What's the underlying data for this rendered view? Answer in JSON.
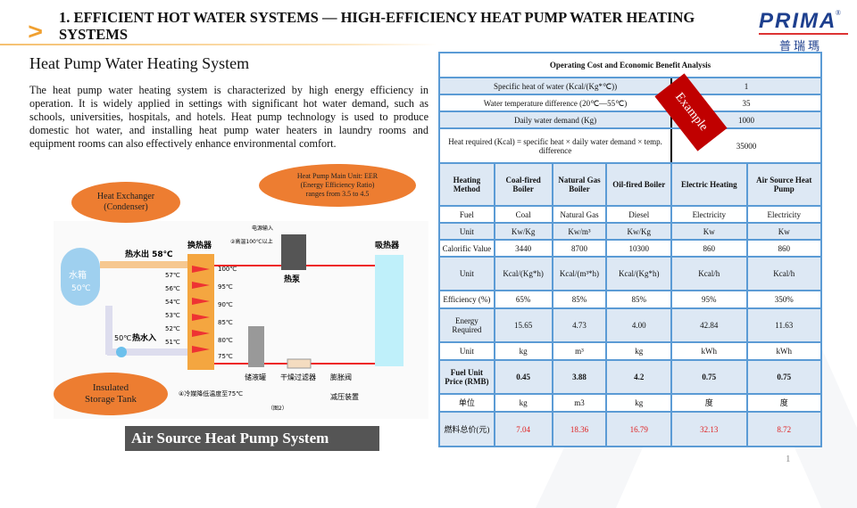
{
  "header": {
    "title": "1. EFFICIENT HOT WATER SYSTEMS — HIGH-EFFICIENCY HEAT PUMP WATER HEATING SYSTEMS",
    "logo_text": "PRIMA",
    "logo_cn": "普瑞瑪"
  },
  "left": {
    "subtitle": "Heat Pump Water Heating System",
    "paragraph": "The heat pump water heating system is characterized by high energy efficiency in operation. It is widely applied in settings with significant hot water demand, such as schools, universities, hospitals, and hotels. Heat pump technology is used to produce domestic hot water, and installing heat pump water heaters in laundry rooms and equipment rooms can also effectively enhance environmental comfort.",
    "callouts": {
      "exchanger": "Heat Exchanger (Condenser)",
      "main_unit": "Heat Pump Main Unit: EER (Energy Efficiency Ratio) ranges from 3.5 to 4.5",
      "tank": "Insulated Storage Tank"
    },
    "diagram": {
      "tank": "水箱",
      "tank_temp": "50℃",
      "hot_out": "热水出 58℃",
      "hot_in": "热水入",
      "in_temp": "50℃",
      "exchanger": "换热器",
      "absorber": "吸热器",
      "pump": "热泵",
      "power": "电源输入",
      "high_temp": "②高温100℃以上",
      "reservoir": "储液罐",
      "filter": "干燥过滤器",
      "valve": "膨胀阀",
      "reducer": "减压装置",
      "fig": "（图2）",
      "lower": "④冷媒降低温度至75℃",
      "water_temps": [
        "57℃",
        "56℃",
        "54℃",
        "53℃",
        "52℃",
        "51℃"
      ],
      "ref_temps": [
        "100℃",
        "95℃",
        "90℃",
        "85℃",
        "80℃",
        "75℃"
      ]
    },
    "caption": "Air Source Heat Pump System"
  },
  "table": {
    "title": "Operating Cost and Economic Benefit Analysis",
    "params": [
      {
        "label": "Specific heat of water (Kcal/(Kg*℃))",
        "value": "1"
      },
      {
        "label": "Water temperature difference (20℃—55℃)",
        "value": "35"
      },
      {
        "label": "Daily water demand (Kg)",
        "value": "1000"
      },
      {
        "label": "Heat required (Kcal) = specific heat × daily water demand × temp. difference",
        "value": "35000"
      }
    ],
    "badge": "Example",
    "headers": [
      "Heating Method",
      "Coal-fired Boiler",
      "Natural Gas Boiler",
      "Oil-fired Boiler",
      "Electric Heating",
      "Air Source Heat Pump"
    ],
    "rows": [
      [
        "Fuel",
        "Coal",
        "Natural Gas",
        "Diesel",
        "Electricity",
        "Electricity"
      ],
      [
        "Unit",
        "Kw/Kg",
        "Kw/m³",
        "Kw/Kg",
        "Kw",
        "Kw"
      ],
      [
        "Calorific Value",
        "3440",
        "8700",
        "10300",
        "860",
        "860"
      ],
      [
        "Unit",
        "Kcal/(Kg*h)",
        "Kcal/(m³*h)",
        "Kcal/(Kg*h)",
        "Kcal/h",
        "Kcal/h"
      ],
      [
        "Efficiency (%)",
        "65%",
        "85%",
        "85%",
        "95%",
        "350%"
      ],
      [
        "Energy Required",
        "15.65",
        "4.73",
        "4.00",
        "42.84",
        "11.63"
      ],
      [
        "Unit",
        "kg",
        "m³",
        "kg",
        "kWh",
        "kWh"
      ],
      [
        "Fuel Unit Price (RMB)",
        "0.45",
        "3.88",
        "4.2",
        "0.75",
        "0.75"
      ],
      [
        "单位",
        "kg",
        "m3",
        "kg",
        "度",
        "度"
      ],
      [
        "燃料总价(元)",
        "7.04",
        "18.36",
        "16.79",
        "32.13",
        "8.72"
      ]
    ],
    "total_color": "#e02020"
  },
  "page_number": "1"
}
